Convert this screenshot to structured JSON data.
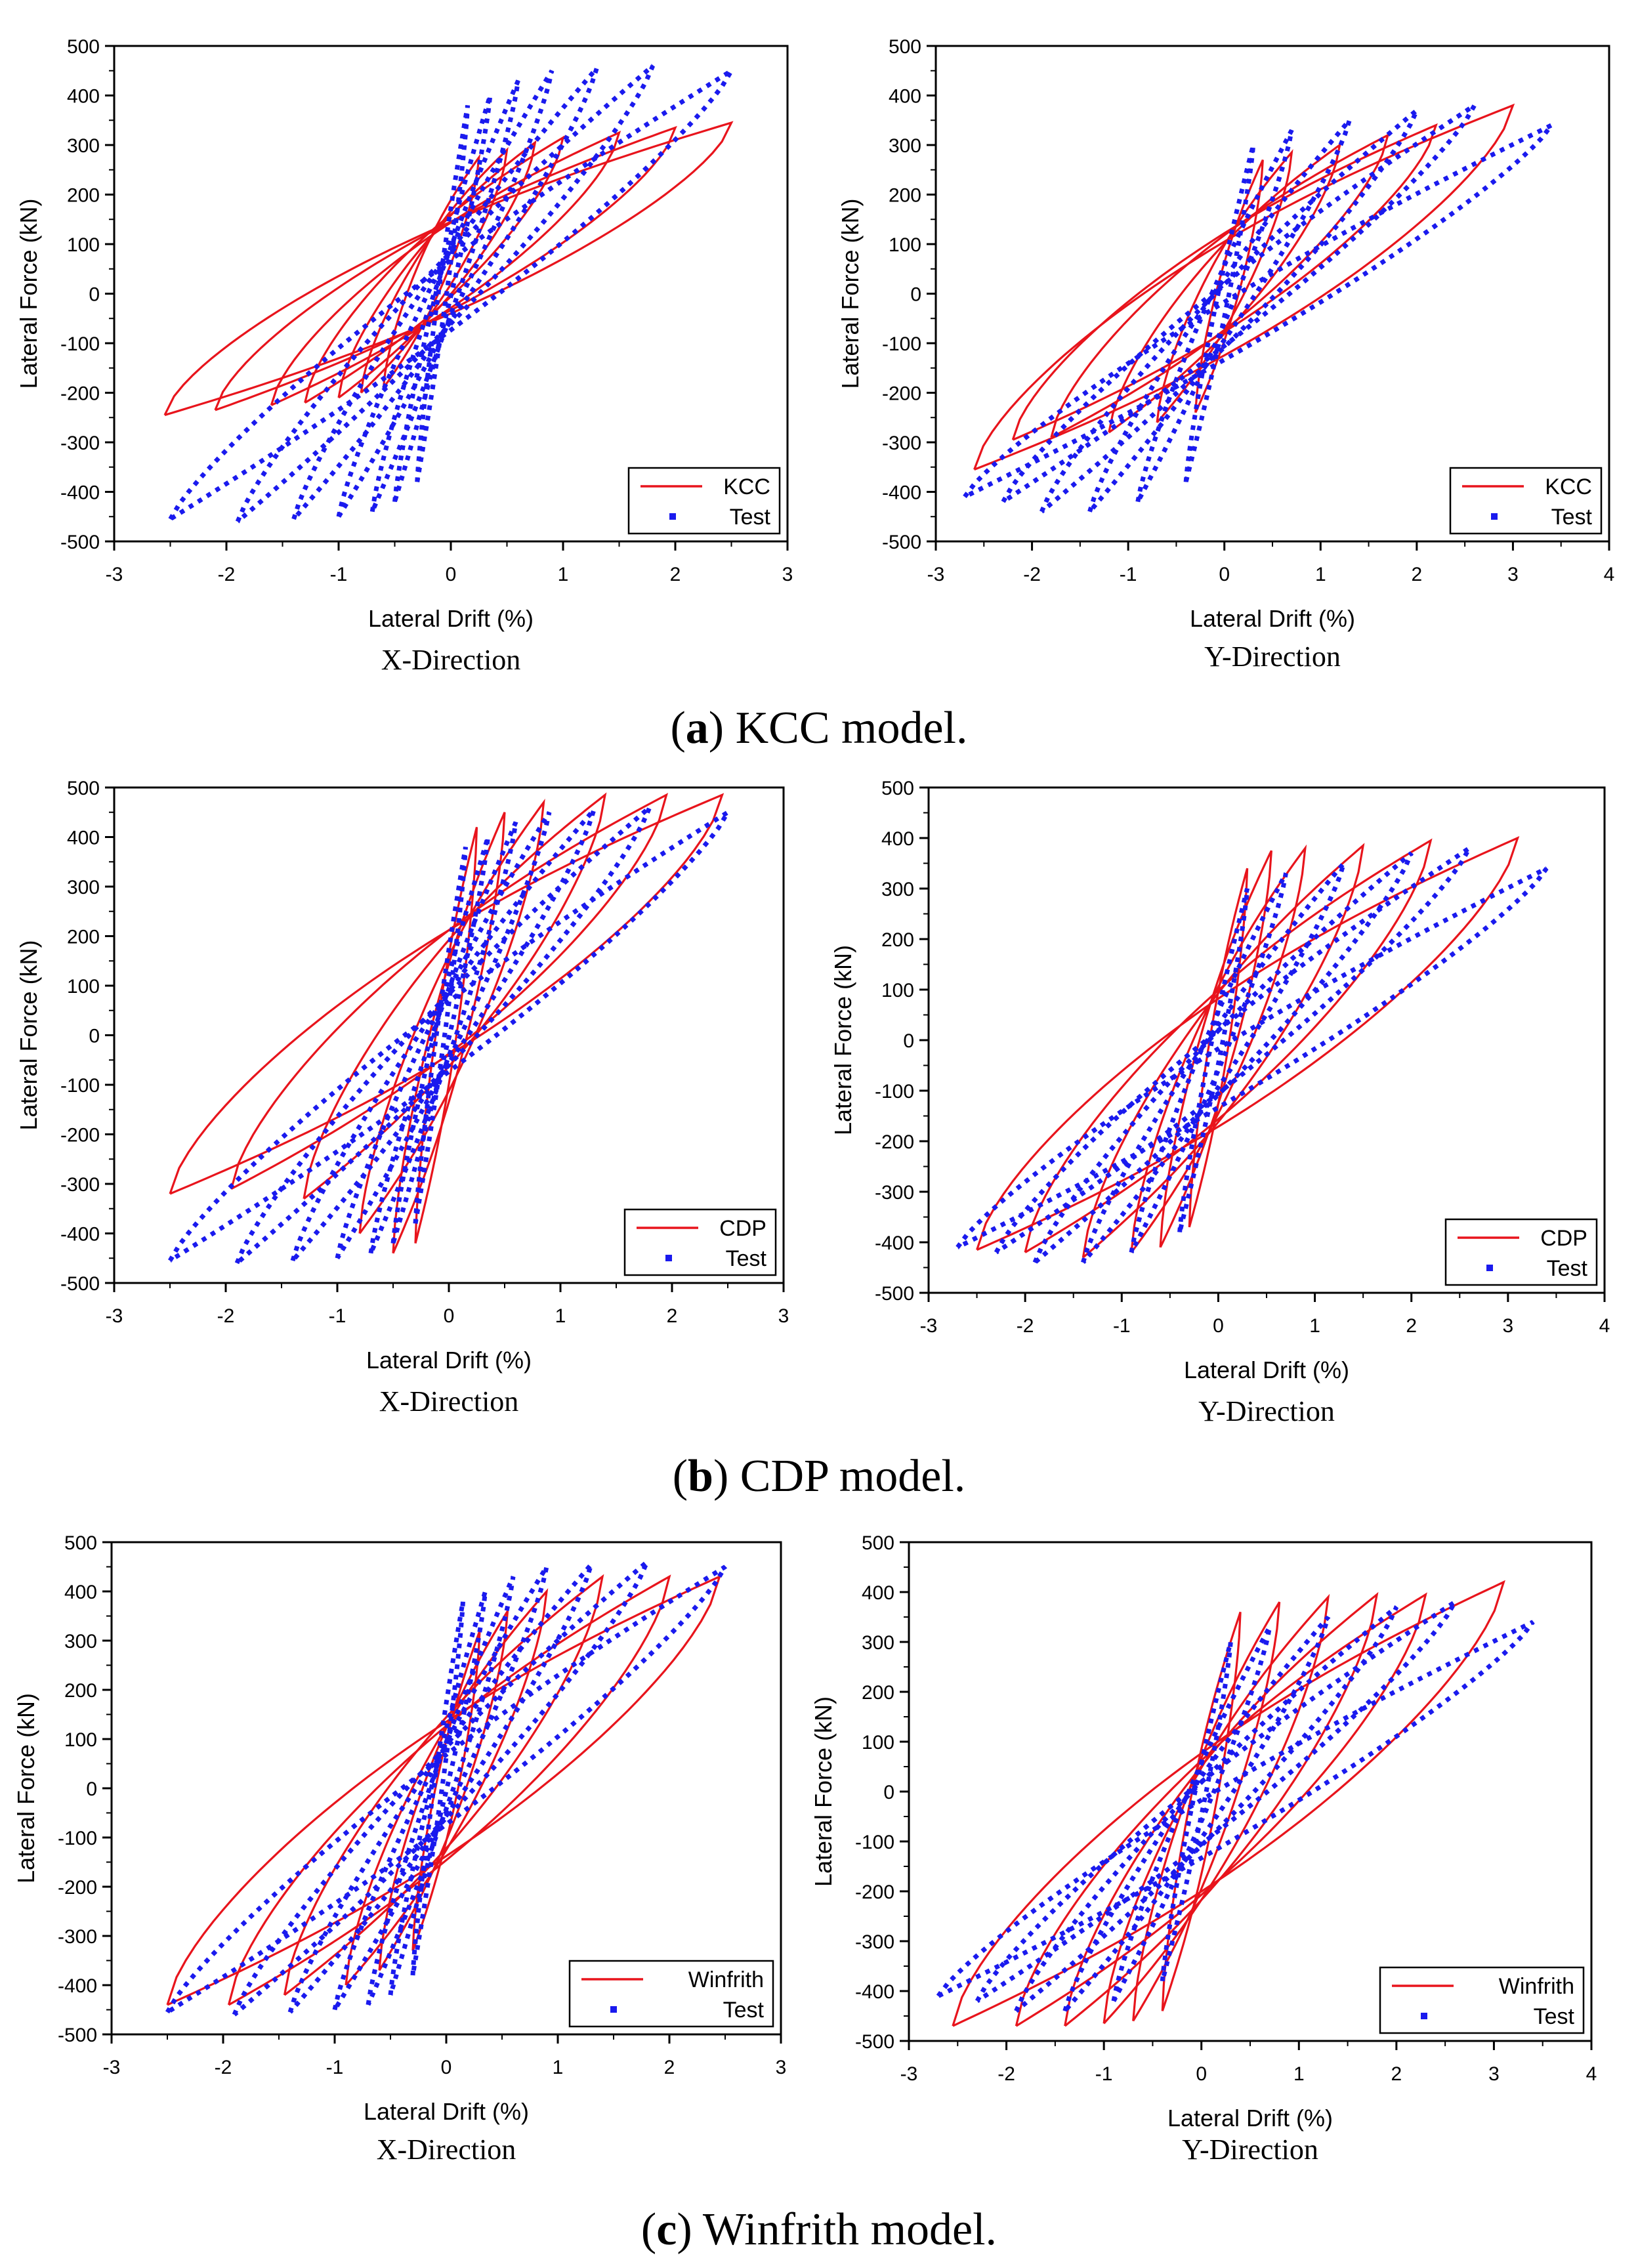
{
  "figure": {
    "rows": [
      {
        "letter": "a",
        "caption_rest": " KCC model."
      },
      {
        "letter": "b",
        "caption_rest": " CDP model."
      },
      {
        "letter": "c",
        "caption_rest": " Winfrith model."
      }
    ]
  },
  "chart_data": [
    {
      "type": "line",
      "id": "kcc-x",
      "subtitle": "X-Direction",
      "xlabel": "Lateral Drift (%)",
      "ylabel": "Lateral Force (kN)",
      "xlim": [
        -3,
        3
      ],
      "ylim": [
        -500,
        500
      ],
      "xticks": [
        -3,
        -2,
        -1,
        0,
        1,
        2,
        3
      ],
      "yticks": [
        -500,
        -400,
        -300,
        -200,
        -100,
        0,
        100,
        200,
        300,
        400,
        500
      ],
      "legend": "bottom-right",
      "series": [
        {
          "name": "KCC",
          "style": "solid",
          "color": "#e8141c",
          "cycles": [
            [
              0.25,
              275,
              -0.6,
              -190
            ],
            [
              0.5,
              290,
              -0.8,
              -200
            ],
            [
              0.75,
              305,
              -1.0,
              -210
            ],
            [
              1.0,
              315,
              -1.3,
              -220
            ],
            [
              1.5,
              325,
              -1.6,
              -225
            ],
            [
              2.0,
              335,
              -2.1,
              -235
            ],
            [
              2.5,
              345,
              -2.55,
              -245
            ]
          ]
        },
        {
          "name": "Test",
          "style": "dotted",
          "color": "#1a1aee",
          "cycles": [
            [
              0.15,
              380,
              -0.3,
              -380
            ],
            [
              0.35,
              400,
              -0.5,
              -420
            ],
            [
              0.6,
              430,
              -0.7,
              -440
            ],
            [
              0.9,
              450,
              -1.0,
              -450
            ],
            [
              1.3,
              455,
              -1.4,
              -455
            ],
            [
              1.8,
              460,
              -1.9,
              -460
            ],
            [
              2.5,
              450,
              -2.5,
              -455
            ]
          ]
        }
      ]
    },
    {
      "type": "line",
      "id": "kcc-y",
      "subtitle": "Y-Direction",
      "xlabel": "Lateral Drift (%)",
      "ylabel": "Lateral Force (kN)",
      "xlim": [
        -3,
        4
      ],
      "ylim": [
        -500,
        500
      ],
      "xticks": [
        -3,
        -2,
        -1,
        0,
        1,
        2,
        3,
        4
      ],
      "yticks": [
        -500,
        -400,
        -300,
        -200,
        -100,
        0,
        100,
        200,
        300,
        400,
        500
      ],
      "legend": "bottom-right",
      "series": [
        {
          "name": "KCC",
          "style": "solid",
          "color": "#e8141c",
          "cycles": [
            [
              0.4,
              270,
              -0.3,
              -240
            ],
            [
              0.7,
              285,
              -0.7,
              -260
            ],
            [
              1.2,
              300,
              -1.2,
              -280
            ],
            [
              1.7,
              320,
              -1.8,
              -290
            ],
            [
              2.2,
              340,
              -2.2,
              -295
            ],
            [
              3.0,
              380,
              -2.6,
              -355
            ]
          ]
        },
        {
          "name": "Test",
          "style": "dotted",
          "color": "#1a1aee",
          "cycles": [
            [
              0.3,
              300,
              -0.4,
              -380
            ],
            [
              0.7,
              330,
              -0.9,
              -420
            ],
            [
              1.3,
              350,
              -1.4,
              -440
            ],
            [
              2.0,
              370,
              -1.9,
              -440
            ],
            [
              2.6,
              380,
              -2.3,
              -420
            ],
            [
              3.4,
              340,
              -2.7,
              -410
            ]
          ]
        }
      ]
    },
    {
      "type": "line",
      "id": "cdp-x",
      "subtitle": "X-Direction",
      "xlabel": "Lateral Drift (%)",
      "ylabel": "Lateral Force (kN)",
      "xlim": [
        -3,
        3
      ],
      "ylim": [
        -500,
        500
      ],
      "xticks": [
        -3,
        -2,
        -1,
        0,
        1,
        2,
        3
      ],
      "yticks": [
        -500,
        -400,
        -300,
        -200,
        -100,
        0,
        100,
        200,
        300,
        400,
        500
      ],
      "legend": "bottom-right",
      "series": [
        {
          "name": "CDP",
          "style": "solid",
          "color": "#e8141c",
          "cycles": [
            [
              0.25,
              420,
              -0.3,
              -420
            ],
            [
              0.5,
              450,
              -0.5,
              -440
            ],
            [
              0.85,
              470,
              -0.8,
              -400
            ],
            [
              1.4,
              485,
              -1.3,
              -330
            ],
            [
              1.95,
              485,
              -1.95,
              -310
            ],
            [
              2.45,
              485,
              -2.5,
              -320
            ]
          ]
        },
        {
          "name": "Test",
          "style": "dotted",
          "color": "#1a1aee",
          "cycles": [
            [
              0.15,
              380,
              -0.3,
              -380
            ],
            [
              0.35,
              400,
              -0.5,
              -420
            ],
            [
              0.6,
              430,
              -0.7,
              -440
            ],
            [
              0.9,
              450,
              -1.0,
              -450
            ],
            [
              1.3,
              455,
              -1.4,
              -455
            ],
            [
              1.8,
              460,
              -1.9,
              -460
            ],
            [
              2.5,
              450,
              -2.5,
              -455
            ]
          ]
        }
      ]
    },
    {
      "type": "line",
      "id": "cdp-y",
      "subtitle": "Y-Direction",
      "xlabel": "Lateral Drift (%)",
      "ylabel": "Lateral Force (kN)",
      "xlim": [
        -3,
        4
      ],
      "ylim": [
        -500,
        500
      ],
      "xticks": [
        -3,
        -2,
        -1,
        0,
        1,
        2,
        3,
        4
      ],
      "yticks": [
        -500,
        -400,
        -300,
        -200,
        -100,
        0,
        100,
        200,
        300,
        400,
        500
      ],
      "legend": "bottom-right",
      "series": [
        {
          "name": "CDP",
          "style": "solid",
          "color": "#e8141c",
          "cycles": [
            [
              0.3,
              340,
              -0.3,
              -370
            ],
            [
              0.55,
              375,
              -0.6,
              -410
            ],
            [
              0.9,
              380,
              -0.9,
              -420
            ],
            [
              1.5,
              385,
              -1.4,
              -430
            ],
            [
              2.2,
              395,
              -2.0,
              -420
            ],
            [
              3.1,
              400,
              -2.5,
              -415
            ]
          ]
        },
        {
          "name": "Test",
          "style": "dotted",
          "color": "#1a1aee",
          "cycles": [
            [
              0.3,
              300,
              -0.4,
              -380
            ],
            [
              0.7,
              330,
              -0.9,
              -420
            ],
            [
              1.3,
              350,
              -1.4,
              -440
            ],
            [
              2.0,
              370,
              -1.9,
              -440
            ],
            [
              2.6,
              380,
              -2.3,
              -420
            ],
            [
              3.4,
              340,
              -2.7,
              -410
            ]
          ]
        }
      ]
    },
    {
      "type": "line",
      "id": "win-x",
      "subtitle": "X-Direction",
      "xlabel": "Lateral Drift (%)",
      "ylabel": "Lateral Force (kN)",
      "xlim": [
        -3,
        3
      ],
      "ylim": [
        -500,
        500
      ],
      "xticks": [
        -3,
        -2,
        -1,
        0,
        1,
        2,
        3
      ],
      "yticks": [
        -500,
        -400,
        -300,
        -200,
        -100,
        0,
        100,
        200,
        300,
        400,
        500
      ],
      "legend": "bottom-right",
      "series": [
        {
          "name": "Winfrith",
          "style": "solid",
          "color": "#e8141c",
          "cycles": [
            [
              0.3,
              320,
              -0.3,
              -330
            ],
            [
              0.55,
              360,
              -0.6,
              -370
            ],
            [
              0.9,
              400,
              -0.9,
              -400
            ],
            [
              1.4,
              430,
              -1.45,
              -420
            ],
            [
              2.0,
              430,
              -1.95,
              -440
            ],
            [
              2.45,
              430,
              -2.5,
              -440
            ]
          ]
        },
        {
          "name": "Test",
          "style": "dotted",
          "color": "#1a1aee",
          "cycles": [
            [
              0.15,
              380,
              -0.3,
              -380
            ],
            [
              0.35,
              400,
              -0.5,
              -420
            ],
            [
              0.6,
              430,
              -0.7,
              -440
            ],
            [
              0.9,
              450,
              -1.0,
              -450
            ],
            [
              1.3,
              455,
              -1.4,
              -455
            ],
            [
              1.8,
              460,
              -1.9,
              -460
            ],
            [
              2.5,
              450,
              -2.5,
              -455
            ]
          ]
        }
      ]
    },
    {
      "type": "line",
      "id": "win-y",
      "subtitle": "Y-Direction",
      "xlabel": "Lateral Drift (%)",
      "ylabel": "Lateral Force (kN)",
      "xlim": [
        -3,
        4
      ],
      "ylim": [
        -500,
        500
      ],
      "xticks": [
        -3,
        -2,
        -1,
        0,
        1,
        2,
        3,
        4
      ],
      "yticks": [
        -500,
        -400,
        -300,
        -200,
        -100,
        0,
        100,
        200,
        300,
        400,
        500
      ],
      "legend": "bottom-right",
      "series": [
        {
          "name": "Winfrith",
          "style": "solid",
          "color": "#e8141c",
          "cycles": [
            [
              0.4,
              360,
              -0.4,
              -440
            ],
            [
              0.8,
              380,
              -0.7,
              -460
            ],
            [
              1.3,
              390,
              -1.0,
              -465
            ],
            [
              1.8,
              395,
              -1.4,
              -470
            ],
            [
              2.3,
              395,
              -1.9,
              -470
            ],
            [
              3.1,
              420,
              -2.55,
              -470
            ]
          ]
        },
        {
          "name": "Test",
          "style": "dotted",
          "color": "#1a1aee",
          "cycles": [
            [
              0.3,
              300,
              -0.4,
              -380
            ],
            [
              0.7,
              330,
              -0.9,
              -420
            ],
            [
              1.3,
              350,
              -1.4,
              -440
            ],
            [
              2.0,
              370,
              -1.9,
              -440
            ],
            [
              2.6,
              380,
              -2.3,
              -420
            ],
            [
              3.4,
              340,
              -2.7,
              -410
            ]
          ]
        }
      ]
    }
  ]
}
